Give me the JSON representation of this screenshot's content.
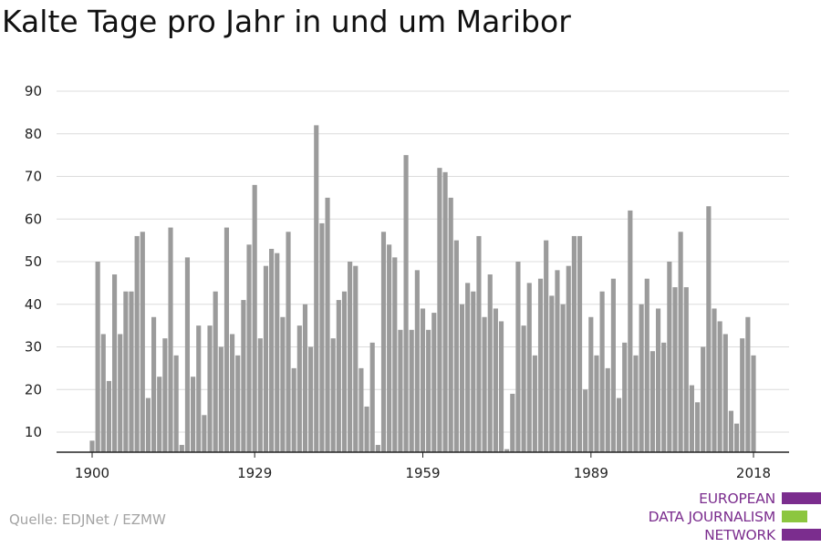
{
  "title": "Kalte Tage pro Jahr in und um Maribor",
  "source": "Quelle: EDJNet / EZMW",
  "logo": {
    "lines": [
      "EUROPEAN",
      "DATA JOURNALISM",
      "NETWORK"
    ],
    "colors": {
      "text": "#7b2d8e",
      "purple": "#7b2d8e",
      "green": "#8cc63f"
    }
  },
  "colors": {
    "bar": "#9b9b9b",
    "grid": "#dcdcdc",
    "axis": "#222222"
  },
  "chart_data": {
    "type": "bar",
    "title": "Kalte Tage pro Jahr in und um Maribor",
    "xlabel": "",
    "ylabel": "",
    "ylim": [
      5,
      92
    ],
    "yticks": [
      10,
      20,
      30,
      40,
      50,
      60,
      70,
      80,
      90
    ],
    "xticks": [
      1900,
      1929,
      1959,
      1989,
      2018
    ],
    "grid": true,
    "x": [
      1900,
      1901,
      1902,
      1903,
      1904,
      1905,
      1906,
      1907,
      1908,
      1909,
      1910,
      1911,
      1912,
      1913,
      1914,
      1915,
      1916,
      1917,
      1918,
      1919,
      1920,
      1921,
      1922,
      1923,
      1924,
      1925,
      1926,
      1927,
      1928,
      1929,
      1930,
      1931,
      1932,
      1933,
      1934,
      1935,
      1936,
      1937,
      1938,
      1939,
      1940,
      1941,
      1942,
      1943,
      1944,
      1945,
      1946,
      1947,
      1948,
      1949,
      1950,
      1951,
      1952,
      1953,
      1954,
      1955,
      1956,
      1957,
      1958,
      1959,
      1960,
      1961,
      1962,
      1963,
      1964,
      1965,
      1966,
      1967,
      1968,
      1969,
      1970,
      1971,
      1972,
      1973,
      1974,
      1975,
      1976,
      1977,
      1978,
      1979,
      1980,
      1981,
      1982,
      1983,
      1984,
      1985,
      1986,
      1987,
      1988,
      1989,
      1990,
      1991,
      1992,
      1993,
      1994,
      1995,
      1996,
      1997,
      1998,
      1999,
      2000,
      2001,
      2002,
      2003,
      2004,
      2005,
      2006,
      2007,
      2008,
      2009,
      2010,
      2011,
      2012,
      2013,
      2014,
      2015,
      2016,
      2017,
      2018
    ],
    "values": [
      8,
      50,
      33,
      22,
      47,
      33,
      43,
      43,
      56,
      57,
      18,
      37,
      23,
      32,
      58,
      28,
      7,
      51,
      23,
      35,
      14,
      35,
      43,
      30,
      58,
      33,
      28,
      41,
      54,
      68,
      32,
      49,
      53,
      52,
      37,
      57,
      25,
      35,
      40,
      30,
      82,
      59,
      65,
      32,
      41,
      43,
      50,
      49,
      25,
      16,
      31,
      7,
      57,
      54,
      51,
      34,
      75,
      34,
      48,
      39,
      34,
      38,
      72,
      71,
      65,
      55,
      40,
      45,
      43,
      56,
      37,
      47,
      39,
      36,
      6,
      19,
      50,
      35,
      45,
      28,
      46,
      55,
      42,
      48,
      40,
      49,
      56,
      56,
      20,
      37,
      28,
      43,
      25,
      46,
      18,
      31,
      62,
      28,
      40,
      46,
      29,
      39,
      31,
      50,
      44,
      57,
      44,
      21,
      17,
      30,
      63,
      39,
      36,
      33,
      15,
      12,
      32,
      37,
      28
    ]
  }
}
